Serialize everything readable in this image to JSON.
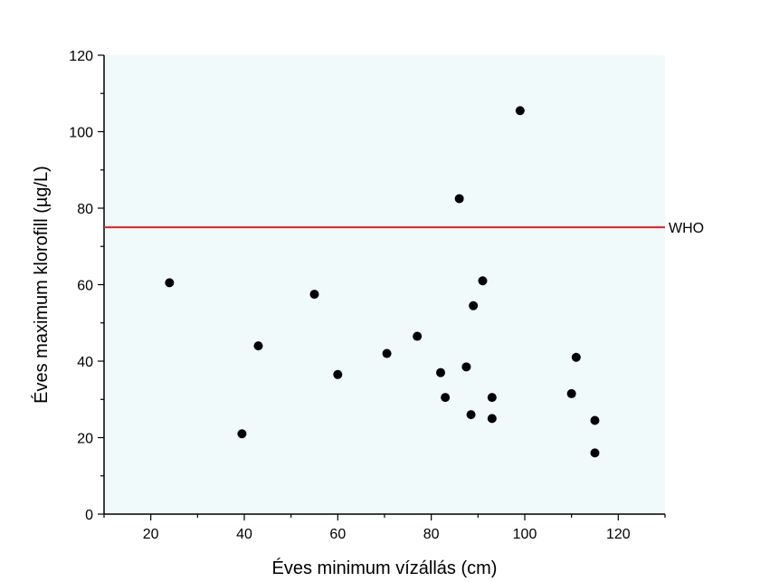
{
  "chart_data": {
    "type": "scatter",
    "xlabel": "Éves minimum vízállás (cm)",
    "ylabel": "Éves maximum klorofill (µg/L)",
    "xlim": [
      10,
      130
    ],
    "ylim": [
      0,
      120
    ],
    "xticks": [
      20,
      40,
      60,
      80,
      100,
      120
    ],
    "yticks": [
      0,
      20,
      40,
      60,
      80,
      100,
      120
    ],
    "grid": false,
    "plot_background": "#f0fafa",
    "marker_color": "#000000",
    "reference_line": {
      "y": 75,
      "label": "WHO",
      "color": "#e02020"
    },
    "points": [
      {
        "x": 24,
        "y": 60.5
      },
      {
        "x": 39.5,
        "y": 21
      },
      {
        "x": 43,
        "y": 44
      },
      {
        "x": 55,
        "y": 57.5
      },
      {
        "x": 60,
        "y": 36.5
      },
      {
        "x": 70.5,
        "y": 42
      },
      {
        "x": 77,
        "y": 46.5
      },
      {
        "x": 82,
        "y": 37
      },
      {
        "x": 83,
        "y": 30.5
      },
      {
        "x": 86,
        "y": 82.5
      },
      {
        "x": 87.5,
        "y": 38.5
      },
      {
        "x": 88.5,
        "y": 26
      },
      {
        "x": 89,
        "y": 54.5
      },
      {
        "x": 91,
        "y": 61
      },
      {
        "x": 93,
        "y": 30.5
      },
      {
        "x": 93,
        "y": 25
      },
      {
        "x": 99,
        "y": 105.5
      },
      {
        "x": 110,
        "y": 31.5
      },
      {
        "x": 111,
        "y": 41
      },
      {
        "x": 115,
        "y": 24.5
      },
      {
        "x": 115,
        "y": 16
      }
    ]
  }
}
